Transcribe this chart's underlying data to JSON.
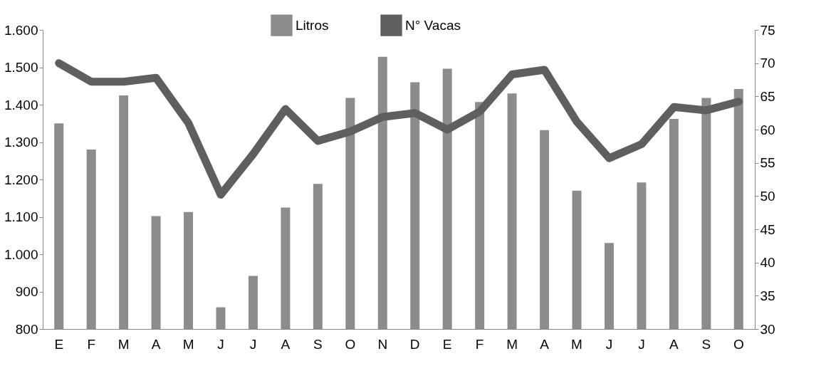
{
  "chart_data": {
    "type": "bar",
    "categories": [
      "E",
      "F",
      "M",
      "A",
      "M",
      "J",
      "J",
      "A",
      "S",
      "O",
      "N",
      "D",
      "E",
      "F",
      "M",
      "A",
      "M",
      "J",
      "J",
      "A",
      "S",
      "O"
    ],
    "series": [
      {
        "name": "Litros",
        "color": "#8c8c8c",
        "values": [
          1350,
          1280,
          1425,
          1102,
          1113,
          858,
          942,
          1125,
          1188,
          1418,
          1528,
          1460,
          1496,
          1407,
          1430,
          1332,
          1170,
          1030,
          1192,
          1362,
          1418,
          1442
        ]
      },
      {
        "name": "N° Vacas",
        "type": "line",
        "axis": "y2",
        "color": "#5f5f5f",
        "values": [
          70,
          67.2,
          67.2,
          67.8,
          61,
          50.2,
          56.3,
          63.1,
          58.3,
          59.7,
          61.9,
          62.5,
          60,
          62.7,
          68.3,
          69,
          61.2,
          55.7,
          57.8,
          63.4,
          62.9,
          64.2
        ]
      }
    ],
    "ylim": [
      800,
      1600
    ],
    "yticks": [
      {
        "value": 800,
        "label": "800"
      },
      {
        "value": 900,
        "label": "900"
      },
      {
        "value": 1000,
        "label": "1.000"
      },
      {
        "value": 1100,
        "label": "1.100"
      },
      {
        "value": 1200,
        "label": "1.200"
      },
      {
        "value": 1300,
        "label": "1.300"
      },
      {
        "value": 1400,
        "label": "1.400"
      },
      {
        "value": 1500,
        "label": "1.500"
      },
      {
        "value": 1600,
        "label": "1.600"
      }
    ],
    "y2lim": [
      30,
      75
    ],
    "y2ticks": [
      30,
      35,
      40,
      45,
      50,
      55,
      60,
      65,
      70,
      75
    ],
    "grid": false,
    "legend": "top"
  }
}
